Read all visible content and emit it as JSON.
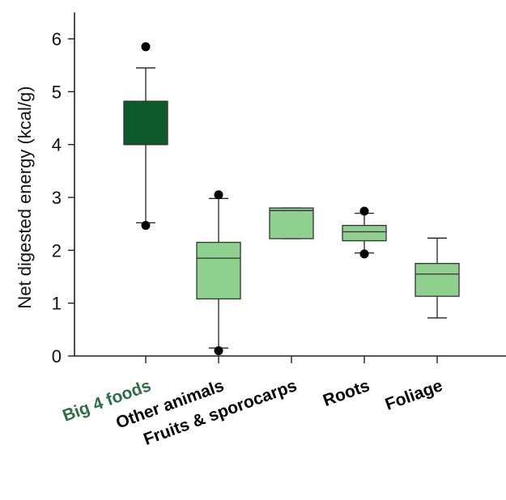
{
  "chart_data": {
    "type": "boxplot",
    "ylabel": "Net digested energy (kcal/g)",
    "xlabel": "",
    "ylim": [
      0,
      6.5
    ],
    "yticks": [
      0,
      1,
      2,
      3,
      4,
      5,
      6
    ],
    "grid": false,
    "categories": [
      "Big 4 foods",
      "Other animals",
      "Fruits & sporocarps",
      "Roots",
      "Foliage"
    ],
    "label_colors": [
      "#2e6e47",
      "#000000",
      "#000000",
      "#000000",
      "#000000"
    ],
    "box_colors": [
      "#0e5a2c",
      "#8fd08f",
      "#8fd08f",
      "#8fd08f",
      "#8fd08f"
    ],
    "boxes": [
      {
        "whisker_low": 2.52,
        "q1": 4.0,
        "median": 4.0,
        "q3": 4.82,
        "whisker_high": 5.45,
        "outliers": [
          5.85,
          2.47
        ]
      },
      {
        "whisker_low": 0.15,
        "q1": 1.08,
        "median": 1.85,
        "q3": 2.15,
        "whisker_high": 2.98,
        "outliers": [
          3.05,
          0.1
        ]
      },
      {
        "whisker_low": 2.22,
        "q1": 2.22,
        "median": 2.75,
        "q3": 2.8,
        "whisker_high": 2.8,
        "outliers": []
      },
      {
        "whisker_low": 1.95,
        "q1": 2.18,
        "median": 2.35,
        "q3": 2.47,
        "whisker_high": 2.7,
        "outliers": [
          2.74,
          1.93
        ]
      },
      {
        "whisker_low": 0.72,
        "q1": 1.13,
        "median": 1.55,
        "q3": 1.75,
        "whisker_high": 2.23,
        "outliers": []
      }
    ]
  }
}
